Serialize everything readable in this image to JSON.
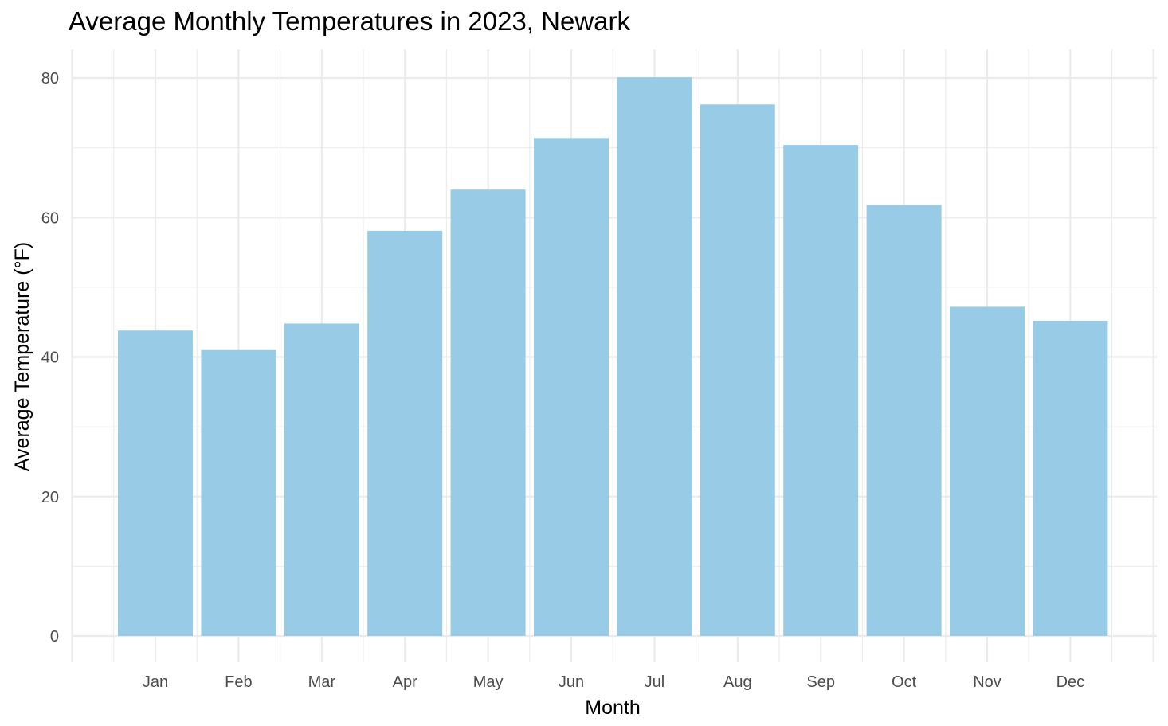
{
  "chart_data": {
    "type": "bar",
    "title": "Average Monthly Temperatures in 2023, Newark",
    "xlabel": "Month",
    "ylabel": "Average Temperature (°F)",
    "categories": [
      "Jan",
      "Feb",
      "Mar",
      "Apr",
      "May",
      "Jun",
      "Jul",
      "Aug",
      "Sep",
      "Oct",
      "Nov",
      "Dec"
    ],
    "values": [
      43.8,
      41.0,
      44.8,
      58.1,
      64.0,
      71.4,
      80.1,
      76.2,
      70.4,
      61.8,
      47.2,
      45.2
    ],
    "ylim": [
      0,
      80
    ],
    "yticks": [
      0,
      20,
      40,
      60,
      80
    ],
    "grid": true,
    "bar_color": "#97CBE6",
    "grid_color": "#EBEBEB"
  }
}
